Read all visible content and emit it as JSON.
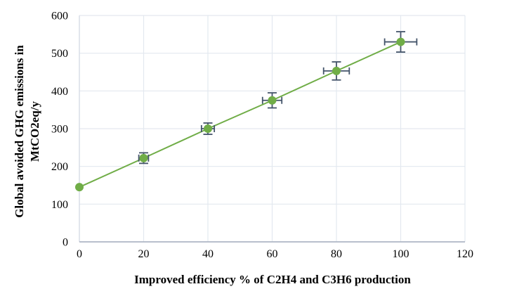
{
  "chart_data": {
    "type": "line",
    "x": [
      0,
      20,
      40,
      60,
      80,
      100
    ],
    "y": [
      145,
      222,
      300,
      375,
      453,
      530
    ],
    "y_err": [
      0,
      14,
      15,
      20,
      24,
      27
    ],
    "x_err": [
      0,
      1.5,
      2,
      3,
      4,
      5
    ],
    "xlabel": "Improved efficiency % of C2H4 and C3H6 production",
    "ylabel": "Global avoided GHG emissions in MtCO2eq/y",
    "ylabel_lines": [
      "Global avoided GHG emissions in",
      "MtCO2eq/y"
    ],
    "xlim": [
      0,
      120
    ],
    "ylim": [
      0,
      600
    ],
    "x_ticks": [
      0,
      20,
      40,
      60,
      80,
      100,
      120
    ],
    "y_ticks": [
      0,
      100,
      200,
      300,
      400,
      500,
      600
    ],
    "grid": true,
    "legend_position": "none",
    "marker": "circle",
    "colors": {
      "line": "#70AD47",
      "marker": "#70AD47",
      "error_bar": "#44546A",
      "gridline": "#E3E8EF",
      "axis_left": "#D6DCE5",
      "axis_bottom": "#AEB6C4",
      "text": "#000000"
    }
  }
}
